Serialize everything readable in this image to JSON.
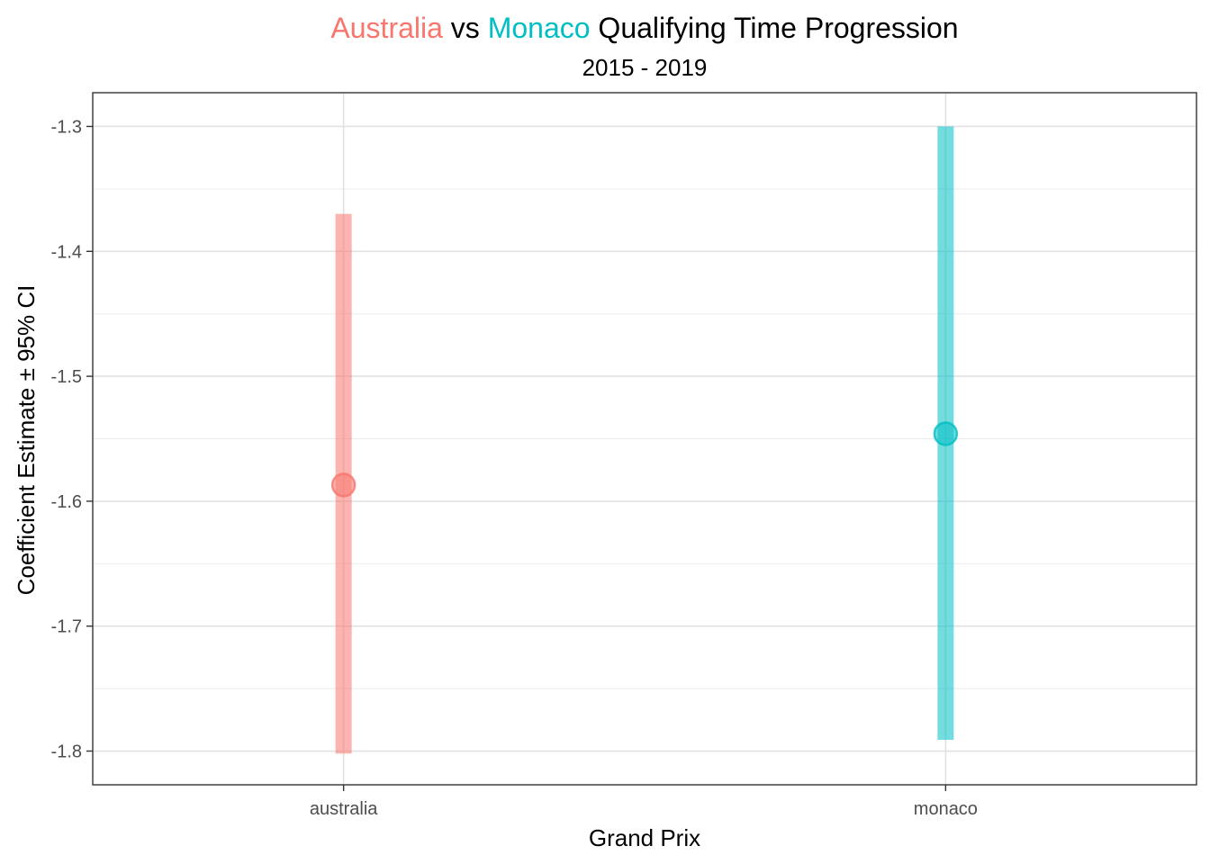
{
  "chart_data": {
    "type": "errorbar",
    "title_parts": [
      {
        "text": "Australia",
        "color": "#F8766D"
      },
      {
        "text": " vs ",
        "color": "#000000"
      },
      {
        "text": "Monaco",
        "color": "#00BFC4"
      },
      {
        "text": " Qualifying Time Progression",
        "color": "#000000"
      }
    ],
    "subtitle": "2015 - 2019",
    "xlabel": "Grand Prix",
    "ylabel": "Coefficient Estimate ± 95% CI",
    "categories": [
      "australia",
      "monaco"
    ],
    "points": [
      {
        "category": "australia",
        "estimate": -1.587,
        "ci_low": -1.802,
        "ci_high": -1.37,
        "color": "#F8766D"
      },
      {
        "category": "monaco",
        "estimate": -1.546,
        "ci_low": -1.791,
        "ci_high": -1.3,
        "color": "#00BFC4"
      }
    ],
    "ylim": [
      -1.827,
      -1.273
    ],
    "yticks": [
      -1.3,
      -1.4,
      -1.5,
      -1.6,
      -1.7,
      -1.8
    ],
    "ytick_labels": [
      "-1.3",
      "-1.4",
      "-1.5",
      "-1.6",
      "-1.7",
      "-1.8"
    ],
    "grid": true,
    "legend": "none"
  }
}
